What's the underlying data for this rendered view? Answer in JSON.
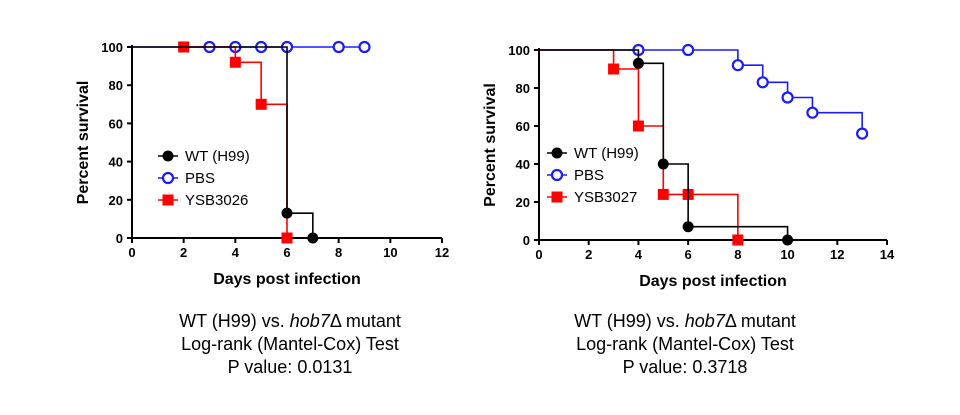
{
  "chart_data": [
    {
      "type": "line",
      "subtype": "kaplan-meier step",
      "xlabel": "Days post infection",
      "ylabel": "Percent survival",
      "xlim": [
        0,
        12
      ],
      "ylim": [
        0,
        100
      ],
      "xticks": [
        0,
        2,
        4,
        6,
        8,
        10,
        12
      ],
      "yticks": [
        0,
        20,
        40,
        60,
        80,
        100
      ],
      "grid": false,
      "legend_position": "left-middle",
      "series": [
        {
          "name": "WT (H99)",
          "color": "#000000",
          "marker": "filled-circle",
          "steps": [
            [
              0,
              100
            ],
            [
              6,
              100
            ],
            [
              6,
              13
            ],
            [
              7,
              13
            ],
            [
              7,
              0
            ]
          ],
          "points": [
            [
              6,
              13
            ],
            [
              7,
              0
            ]
          ]
        },
        {
          "name": "PBS",
          "color": "#1a1aff",
          "marker": "open-circle",
          "steps": [
            [
              0,
              100
            ],
            [
              9,
              100
            ]
          ],
          "points": [
            [
              3,
              100
            ],
            [
              4,
              100
            ],
            [
              5,
              100
            ],
            [
              6,
              100
            ],
            [
              8,
              100
            ],
            [
              9,
              100
            ]
          ]
        },
        {
          "name": "YSB3026",
          "color": "#ff0000",
          "marker": "filled-square",
          "steps": [
            [
              2,
              100
            ],
            [
              4,
              100
            ],
            [
              4,
              92
            ],
            [
              5,
              92
            ],
            [
              5,
              70
            ],
            [
              6,
              70
            ],
            [
              6,
              0
            ]
          ],
          "points": [
            [
              2,
              100
            ],
            [
              4,
              92
            ],
            [
              5,
              70
            ],
            [
              6,
              0
            ]
          ]
        }
      ]
    },
    {
      "type": "line",
      "subtype": "kaplan-meier step",
      "xlabel": "Days post infection",
      "ylabel": "Percent survival",
      "xlim": [
        0,
        14
      ],
      "ylim": [
        0,
        100
      ],
      "xticks": [
        0,
        2,
        4,
        6,
        8,
        10,
        12,
        14
      ],
      "yticks": [
        0,
        20,
        40,
        60,
        80,
        100
      ],
      "grid": false,
      "legend_position": "left-middle",
      "series": [
        {
          "name": "WT (H99)",
          "color": "#000000",
          "marker": "filled-circle",
          "steps": [
            [
              0,
              100
            ],
            [
              4,
              100
            ],
            [
              4,
              93
            ],
            [
              5,
              93
            ],
            [
              5,
              40
            ],
            [
              6,
              40
            ],
            [
              6,
              7
            ],
            [
              10,
              7
            ],
            [
              10,
              0
            ]
          ],
          "points": [
            [
              4,
              93
            ],
            [
              5,
              40
            ],
            [
              6,
              7
            ],
            [
              10,
              0
            ]
          ]
        },
        {
          "name": "PBS",
          "color": "#1a1aff",
          "marker": "open-circle",
          "steps": [
            [
              0,
              100
            ],
            [
              8,
              100
            ],
            [
              8,
              92
            ],
            [
              9,
              92
            ],
            [
              9,
              83
            ],
            [
              10,
              83
            ],
            [
              10,
              75
            ],
            [
              11,
              75
            ],
            [
              11,
              67
            ],
            [
              13,
              67
            ],
            [
              13,
              56
            ]
          ],
          "points": [
            [
              4,
              100
            ],
            [
              6,
              100
            ],
            [
              8,
              92
            ],
            [
              9,
              83
            ],
            [
              10,
              75
            ],
            [
              11,
              67
            ],
            [
              13,
              56
            ]
          ]
        },
        {
          "name": "YSB3027",
          "color": "#ff0000",
          "marker": "filled-square",
          "steps": [
            [
              0,
              100
            ],
            [
              3,
              100
            ],
            [
              3,
              90
            ],
            [
              4,
              90
            ],
            [
              4,
              60
            ],
            [
              5,
              60
            ],
            [
              5,
              24
            ],
            [
              6,
              24
            ],
            [
              8,
              24
            ],
            [
              8,
              0
            ]
          ],
          "points": [
            [
              3,
              90
            ],
            [
              4,
              60
            ],
            [
              5,
              24
            ],
            [
              6,
              24
            ],
            [
              8,
              0
            ]
          ]
        }
      ]
    }
  ],
  "captions": [
    {
      "line1_pre": "WT (H99) vs. ",
      "line1_italic": "hob7",
      "line1_post": "Δ mutant",
      "line2": "Log-rank (Mantel-Cox) Test",
      "line3": "P value: 0.0131"
    },
    {
      "line1_pre": "WT (H99) vs. ",
      "line1_italic": "hob7",
      "line1_post": "Δ mutant",
      "line2": "Log-rank (Mantel-Cox) Test",
      "line3": "P value: 0.3718"
    }
  ]
}
